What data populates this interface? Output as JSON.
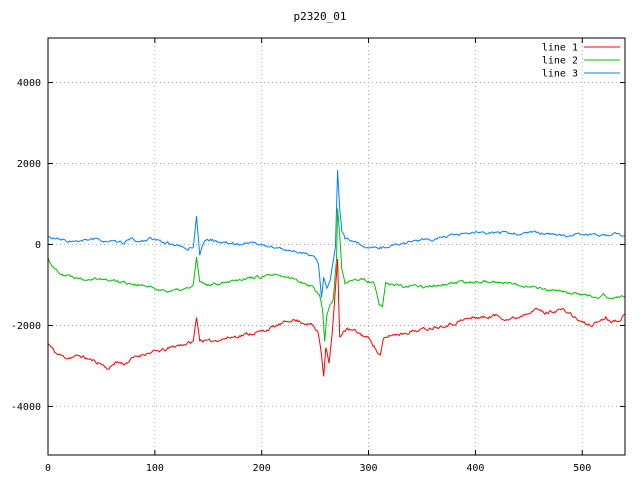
{
  "title": "p2320_01",
  "chart_data": {
    "type": "line",
    "title": "p2320_01",
    "xlabel": "",
    "ylabel": "",
    "xlim": [
      0,
      540
    ],
    "ylim": [
      -5200,
      5100
    ],
    "xticks": [
      0,
      100,
      200,
      300,
      400,
      500
    ],
    "yticks": [
      -4000,
      -2000,
      0,
      2000,
      4000
    ],
    "grid": "dotted",
    "grid_color": "#b0b0b0",
    "border_color": "#000000",
    "background": "#ffffff",
    "legend_position": "top-right",
    "series": [
      {
        "name": "line 1",
        "color": "#ff0000",
        "noise": 70,
        "seed": 11,
        "points": [
          [
            0,
            -2450
          ],
          [
            8,
            -2700
          ],
          [
            18,
            -2800
          ],
          [
            30,
            -2750
          ],
          [
            40,
            -2850
          ],
          [
            50,
            -2950
          ],
          [
            57,
            -3080
          ],
          [
            63,
            -2900
          ],
          [
            72,
            -2950
          ],
          [
            80,
            -2800
          ],
          [
            90,
            -2700
          ],
          [
            100,
            -2650
          ],
          [
            110,
            -2600
          ],
          [
            120,
            -2500
          ],
          [
            130,
            -2450
          ],
          [
            136,
            -2400
          ],
          [
            139,
            -1780
          ],
          [
            142,
            -2350
          ],
          [
            150,
            -2400
          ],
          [
            160,
            -2350
          ],
          [
            170,
            -2300
          ],
          [
            180,
            -2250
          ],
          [
            190,
            -2200
          ],
          [
            200,
            -2150
          ],
          [
            210,
            -2050
          ],
          [
            220,
            -1950
          ],
          [
            228,
            -1850
          ],
          [
            235,
            -1900
          ],
          [
            242,
            -1950
          ],
          [
            248,
            -2000
          ],
          [
            253,
            -2200
          ],
          [
            256,
            -2700
          ],
          [
            258,
            -3250
          ],
          [
            260,
            -2500
          ],
          [
            263,
            -2900
          ],
          [
            266,
            -2200
          ],
          [
            269,
            -1100
          ],
          [
            271,
            -400
          ],
          [
            273,
            -2300
          ],
          [
            276,
            -2150
          ],
          [
            280,
            -2100
          ],
          [
            288,
            -2150
          ],
          [
            295,
            -2250
          ],
          [
            302,
            -2350
          ],
          [
            308,
            -2650
          ],
          [
            311,
            -2750
          ],
          [
            314,
            -2350
          ],
          [
            320,
            -2250
          ],
          [
            330,
            -2200
          ],
          [
            340,
            -2150
          ],
          [
            350,
            -2100
          ],
          [
            360,
            -2050
          ],
          [
            370,
            -2000
          ],
          [
            380,
            -1950
          ],
          [
            390,
            -1850
          ],
          [
            400,
            -1800
          ],
          [
            410,
            -1800
          ],
          [
            420,
            -1750
          ],
          [
            430,
            -1850
          ],
          [
            440,
            -1800
          ],
          [
            450,
            -1650
          ],
          [
            458,
            -1600
          ],
          [
            465,
            -1700
          ],
          [
            472,
            -1650
          ],
          [
            480,
            -1600
          ],
          [
            488,
            -1700
          ],
          [
            495,
            -1850
          ],
          [
            502,
            -1950
          ],
          [
            508,
            -2000
          ],
          [
            515,
            -1900
          ],
          [
            522,
            -1800
          ],
          [
            528,
            -1900
          ],
          [
            534,
            -1850
          ],
          [
            540,
            -1750
          ]
        ]
      },
      {
        "name": "line 2",
        "color": "#00c000",
        "noise": 60,
        "seed": 22,
        "points": [
          [
            0,
            -350
          ],
          [
            6,
            -600
          ],
          [
            15,
            -750
          ],
          [
            25,
            -800
          ],
          [
            35,
            -850
          ],
          [
            45,
            -820
          ],
          [
            55,
            -880
          ],
          [
            65,
            -900
          ],
          [
            75,
            -950
          ],
          [
            85,
            -1000
          ],
          [
            95,
            -1050
          ],
          [
            105,
            -1120
          ],
          [
            115,
            -1150
          ],
          [
            125,
            -1120
          ],
          [
            132,
            -1080
          ],
          [
            136,
            -1000
          ],
          [
            139,
            -320
          ],
          [
            142,
            -950
          ],
          [
            150,
            -1000
          ],
          [
            160,
            -950
          ],
          [
            170,
            -900
          ],
          [
            180,
            -850
          ],
          [
            190,
            -820
          ],
          [
            200,
            -800
          ],
          [
            210,
            -760
          ],
          [
            220,
            -800
          ],
          [
            230,
            -850
          ],
          [
            240,
            -950
          ],
          [
            248,
            -1050
          ],
          [
            254,
            -1250
          ],
          [
            257,
            -1600
          ],
          [
            259,
            -2400
          ],
          [
            261,
            -1700
          ],
          [
            264,
            -1500
          ],
          [
            267,
            -1350
          ],
          [
            270,
            -400
          ],
          [
            271,
            900
          ],
          [
            273,
            200
          ],
          [
            275,
            -600
          ],
          [
            278,
            -950
          ],
          [
            285,
            -850
          ],
          [
            295,
            -880
          ],
          [
            305,
            -950
          ],
          [
            310,
            -1500
          ],
          [
            313,
            -1550
          ],
          [
            316,
            -950
          ],
          [
            325,
            -1000
          ],
          [
            335,
            -1050
          ],
          [
            345,
            -1020
          ],
          [
            355,
            -1050
          ],
          [
            365,
            -1000
          ],
          [
            375,
            -980
          ],
          [
            385,
            -950
          ],
          [
            395,
            -930
          ],
          [
            405,
            -900
          ],
          [
            415,
            -930
          ],
          [
            425,
            -950
          ],
          [
            435,
            -980
          ],
          [
            445,
            -1000
          ],
          [
            455,
            -1050
          ],
          [
            465,
            -1100
          ],
          [
            475,
            -1150
          ],
          [
            485,
            -1180
          ],
          [
            495,
            -1220
          ],
          [
            505,
            -1280
          ],
          [
            512,
            -1320
          ],
          [
            520,
            -1250
          ],
          [
            527,
            -1330
          ],
          [
            534,
            -1300
          ],
          [
            540,
            -1280
          ]
        ]
      },
      {
        "name": "line 3",
        "color": "#0080ff",
        "noise": 55,
        "seed": 33,
        "points": [
          [
            0,
            180
          ],
          [
            10,
            120
          ],
          [
            20,
            80
          ],
          [
            30,
            60
          ],
          [
            40,
            140
          ],
          [
            50,
            100
          ],
          [
            60,
            60
          ],
          [
            70,
            40
          ],
          [
            78,
            130
          ],
          [
            85,
            60
          ],
          [
            95,
            140
          ],
          [
            105,
            80
          ],
          [
            115,
            20
          ],
          [
            125,
            -60
          ],
          [
            131,
            -120
          ],
          [
            136,
            -50
          ],
          [
            139,
            700
          ],
          [
            142,
            -250
          ],
          [
            146,
            80
          ],
          [
            152,
            120
          ],
          [
            160,
            60
          ],
          [
            170,
            30
          ],
          [
            180,
            0
          ],
          [
            190,
            60
          ],
          [
            200,
            -20
          ],
          [
            210,
            -60
          ],
          [
            220,
            -120
          ],
          [
            230,
            -160
          ],
          [
            240,
            -220
          ],
          [
            248,
            -300
          ],
          [
            253,
            -450
          ],
          [
            256,
            -1300
          ],
          [
            258,
            -800
          ],
          [
            261,
            -1100
          ],
          [
            264,
            -900
          ],
          [
            267,
            -400
          ],
          [
            269,
            -100
          ],
          [
            271,
            1800
          ],
          [
            273,
            900
          ],
          [
            275,
            350
          ],
          [
            278,
            150
          ],
          [
            283,
            80
          ],
          [
            290,
            20
          ],
          [
            298,
            -60
          ],
          [
            305,
            -100
          ],
          [
            312,
            -80
          ],
          [
            320,
            -30
          ],
          [
            330,
            20
          ],
          [
            340,
            80
          ],
          [
            350,
            120
          ],
          [
            360,
            120
          ],
          [
            370,
            180
          ],
          [
            380,
            220
          ],
          [
            390,
            260
          ],
          [
            400,
            300
          ],
          [
            410,
            260
          ],
          [
            420,
            300
          ],
          [
            430,
            280
          ],
          [
            440,
            260
          ],
          [
            450,
            300
          ],
          [
            460,
            280
          ],
          [
            470,
            260
          ],
          [
            480,
            230
          ],
          [
            490,
            210
          ],
          [
            500,
            260
          ],
          [
            510,
            220
          ],
          [
            520,
            230
          ],
          [
            530,
            260
          ],
          [
            540,
            210
          ]
        ]
      }
    ]
  }
}
